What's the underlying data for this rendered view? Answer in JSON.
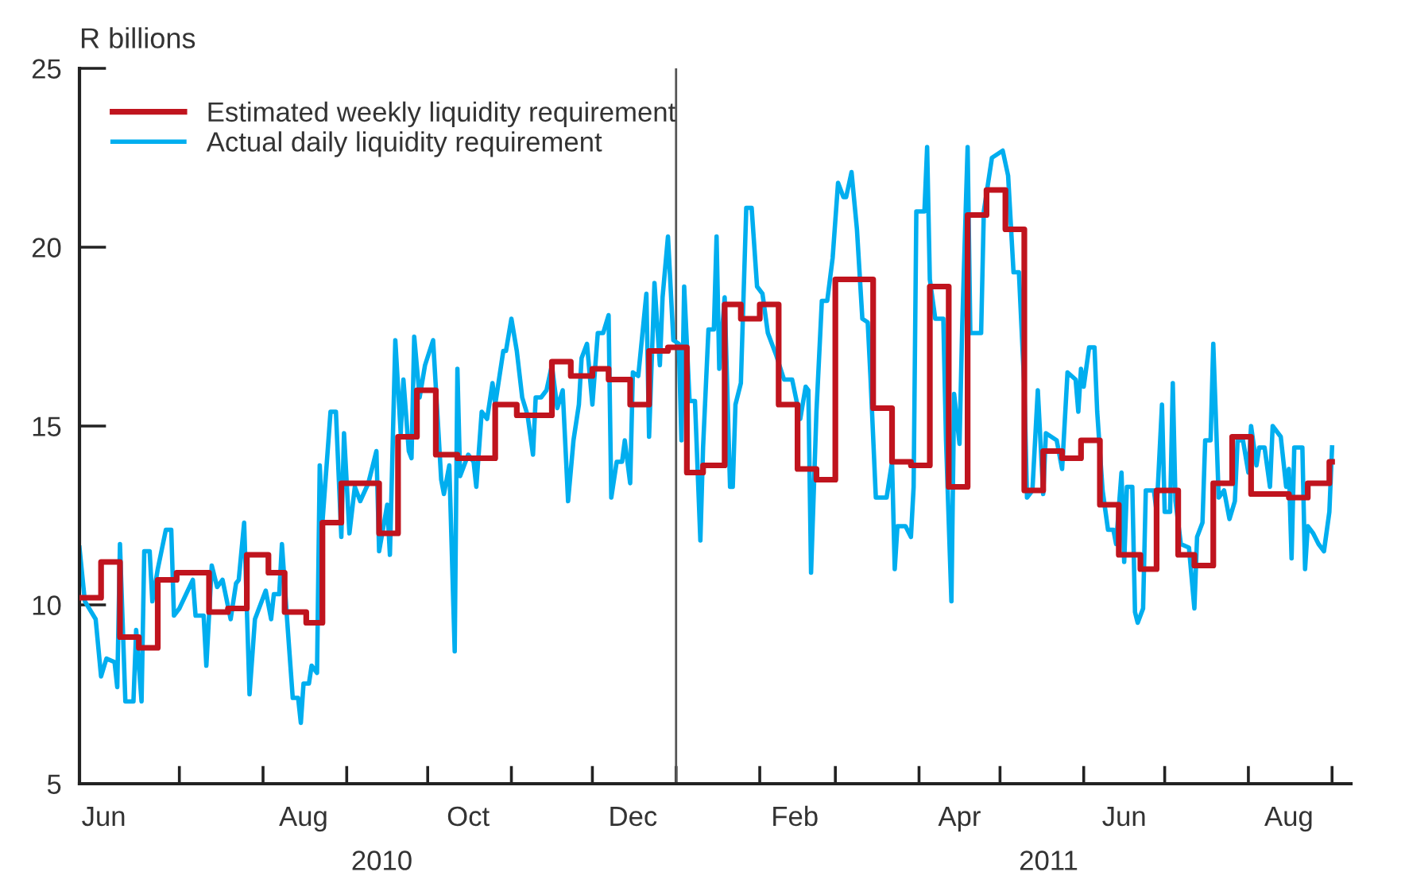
{
  "chart_data": {
    "type": "line",
    "ylabel": "R billions",
    "xlim": [
      "2010-05-25",
      "2011-09-08"
    ],
    "ylim": [
      5,
      25
    ],
    "yticks": [
      5,
      10,
      15,
      20,
      25
    ],
    "xticks": [
      {
        "value": "2010-07-01",
        "label": null
      },
      {
        "value": "2010-08-01",
        "label": null
      },
      {
        "value": "2010-09-01",
        "label": null
      },
      {
        "value": "2010-10-01",
        "label": null
      },
      {
        "value": "2010-11-01",
        "label": null
      },
      {
        "value": "2010-12-01",
        "label": null
      },
      {
        "value": "2011-01-01",
        "label": null
      },
      {
        "value": "2011-02-01",
        "label": null
      },
      {
        "value": "2011-03-01",
        "label": null
      },
      {
        "value": "2011-04-01",
        "label": null
      },
      {
        "value": "2011-05-01",
        "label": null
      },
      {
        "value": "2011-06-01",
        "label": null
      },
      {
        "value": "2011-07-01",
        "label": null
      },
      {
        "value": "2011-08-01",
        "label": null
      },
      {
        "value": "2011-09-01",
        "label": null
      },
      {
        "value": "2010-06-03",
        "label": "Jun"
      },
      {
        "value": "2010-08-16",
        "label": "Aug"
      },
      {
        "value": "2010-10-16",
        "label": "Oct"
      },
      {
        "value": "2010-12-16",
        "label": "Dec"
      },
      {
        "value": "2011-02-14",
        "label": "Feb"
      },
      {
        "value": "2011-04-16",
        "label": "Apr"
      },
      {
        "value": "2011-06-16",
        "label": "Jun"
      },
      {
        "value": "2011-08-16",
        "label": "Aug"
      }
    ],
    "x2lim": [
      "2010-05-25",
      "2011-09-08"
    ],
    "x2ticks": [
      {
        "value": "2010-09-14",
        "label": "2010"
      },
      {
        "value": "2011-05-19",
        "label": "2011"
      }
    ],
    "ref_lines": [
      {
        "axis": "x",
        "value": "2011-01-01",
        "label": null,
        "color": "#555555"
      }
    ],
    "legend": "top left",
    "grid": false,
    "marker": "none",
    "line_style": "solid",
    "series": [
      {
        "name": "Estimated weekly liquidity requirement",
        "type": "step",
        "color": "#c0141e",
        "x": [
          "2010-05-25",
          "2010-06-02",
          "2010-06-09",
          "2010-06-16",
          "2010-06-23",
          "2010-06-30",
          "2010-07-12",
          "2010-07-19",
          "2010-07-26",
          "2010-08-03",
          "2010-08-09",
          "2010-08-17",
          "2010-08-23",
          "2010-08-30",
          "2010-09-13",
          "2010-09-20",
          "2010-09-27",
          "2010-10-04",
          "2010-10-12",
          "2010-10-26",
          "2010-11-03",
          "2010-11-16",
          "2010-11-23",
          "2010-12-01",
          "2010-12-07",
          "2010-12-15",
          "2010-12-22",
          "2010-12-29",
          "2011-01-05",
          "2011-01-11",
          "2011-01-19",
          "2011-01-25",
          "2011-02-01",
          "2011-02-08",
          "2011-02-15",
          "2011-02-22",
          "2011-03-01",
          "2011-03-15",
          "2011-03-22",
          "2011-03-29",
          "2011-04-05",
          "2011-04-12",
          "2011-04-19",
          "2011-04-26",
          "2011-05-03",
          "2011-05-10",
          "2011-05-17",
          "2011-05-24",
          "2011-05-31",
          "2011-06-07",
          "2011-06-14",
          "2011-06-22",
          "2011-06-28",
          "2011-07-06",
          "2011-07-12",
          "2011-07-19",
          "2011-07-26",
          "2011-08-02",
          "2011-08-16",
          "2011-08-23",
          "2011-08-31",
          "2011-09-01"
        ],
        "values": [
          10.2,
          11.2,
          9.1,
          8.8,
          10.7,
          10.9,
          9.8,
          9.9,
          11.4,
          10.9,
          9.8,
          9.5,
          12.3,
          13.4,
          12.0,
          14.7,
          16.0,
          14.2,
          14.1,
          15.6,
          15.3,
          16.8,
          16.4,
          16.6,
          16.3,
          15.6,
          17.1,
          17.2,
          13.7,
          13.9,
          18.4,
          18.0,
          18.4,
          15.6,
          13.8,
          13.5,
          19.1,
          15.5,
          14.0,
          13.9,
          18.9,
          13.3,
          20.9,
          21.6,
          20.5,
          13.2,
          14.3,
          14.1,
          14.6,
          12.8,
          11.4,
          11.0,
          13.2,
          11.4,
          11.1,
          13.4,
          14.7,
          13.1,
          13.0,
          13.4,
          14.0,
          14.0
        ]
      },
      {
        "name": "Actual daily liquidity requirement",
        "color": "#00aeef",
        "x": [
          "2010-05-25",
          "2010-05-27",
          "2010-05-31",
          "2010-06-02",
          "2010-06-04",
          "2010-06-07",
          "2010-06-08",
          "2010-06-09",
          "2010-06-11",
          "2010-06-14",
          "2010-06-15",
          "2010-06-17",
          "2010-06-18",
          "2010-06-20",
          "2010-06-21",
          "2010-06-23",
          "2010-06-26",
          "2010-06-28",
          "2010-06-29",
          "2010-07-01",
          "2010-07-06",
          "2010-07-07",
          "2010-07-10",
          "2010-07-11",
          "2010-07-13",
          "2010-07-15",
          "2010-07-17",
          "2010-07-20",
          "2010-07-22",
          "2010-07-23",
          "2010-07-25",
          "2010-07-27",
          "2010-07-29",
          "2010-08-02",
          "2010-08-04",
          "2010-08-05",
          "2010-08-07",
          "2010-08-08",
          "2010-08-10",
          "2010-08-12",
          "2010-08-14",
          "2010-08-15",
          "2010-08-16",
          "2010-08-18",
          "2010-08-19",
          "2010-08-21",
          "2010-08-22",
          "2010-08-23",
          "2010-08-26",
          "2010-08-28",
          "2010-08-30",
          "2010-08-31",
          "2010-09-02",
          "2010-09-04",
          "2010-09-06",
          "2010-09-09",
          "2010-09-12",
          "2010-09-13",
          "2010-09-16",
          "2010-09-17",
          "2010-09-19",
          "2010-09-21",
          "2010-09-22",
          "2010-09-24",
          "2010-09-25",
          "2010-09-26",
          "2010-09-28",
          "2010-09-30",
          "2010-10-03",
          "2010-10-06",
          "2010-10-07",
          "2010-10-09",
          "2010-10-11",
          "2010-10-12",
          "2010-10-13",
          "2010-10-16",
          "2010-10-18",
          "2010-10-19",
          "2010-10-21",
          "2010-10-23",
          "2010-10-25",
          "2010-10-26",
          "2010-10-29",
          "2010-10-30",
          "2010-11-01",
          "2010-11-03",
          "2010-11-05",
          "2010-11-07",
          "2010-11-09",
          "2010-11-10",
          "2010-11-12",
          "2010-11-14",
          "2010-11-16",
          "2010-11-18",
          "2010-11-20",
          "2010-11-22",
          "2010-11-24",
          "2010-11-26",
          "2010-11-27",
          "2010-11-29",
          "2010-12-01",
          "2010-12-03",
          "2010-12-05",
          "2010-12-07",
          "2010-12-08",
          "2010-12-10",
          "2010-12-12",
          "2010-12-13",
          "2010-12-15",
          "2010-12-16",
          "2010-12-18",
          "2010-12-21",
          "2010-12-22",
          "2010-12-24",
          "2010-12-26",
          "2010-12-27",
          "2010-12-29",
          "2010-12-31",
          "2011-01-02",
          "2011-01-03",
          "2011-01-04",
          "2011-01-06",
          "2011-01-08",
          "2011-01-10",
          "2011-01-11",
          "2011-01-13",
          "2011-01-15",
          "2011-01-16",
          "2011-01-17",
          "2011-01-19",
          "2011-01-21",
          "2011-01-22",
          "2011-01-23",
          "2011-01-25",
          "2011-01-27",
          "2011-01-29",
          "2011-01-31",
          "2011-02-02",
          "2011-02-04",
          "2011-02-07",
          "2011-02-10",
          "2011-02-13",
          "2011-02-16",
          "2011-02-18",
          "2011-02-19",
          "2011-02-20",
          "2011-02-22",
          "2011-02-24",
          "2011-02-26",
          "2011-02-28",
          "2011-03-02",
          "2011-03-04",
          "2011-03-05",
          "2011-03-07",
          "2011-03-09",
          "2011-03-11",
          "2011-03-13",
          "2011-03-14",
          "2011-03-16",
          "2011-03-20",
          "2011-03-22",
          "2011-03-23",
          "2011-03-24",
          "2011-03-27",
          "2011-03-29",
          "2011-03-30",
          "2011-03-31",
          "2011-04-03",
          "2011-04-04",
          "2011-04-05",
          "2011-04-07",
          "2011-04-10",
          "2011-04-11",
          "2011-04-13",
          "2011-04-14",
          "2011-04-16",
          "2011-04-17",
          "2011-04-19",
          "2011-04-20",
          "2011-04-24",
          "2011-04-25",
          "2011-04-28",
          "2011-04-30",
          "2011-05-02",
          "2011-05-04",
          "2011-05-06",
          "2011-05-08",
          "2011-05-10",
          "2011-05-11",
          "2011-05-13",
          "2011-05-15",
          "2011-05-17",
          "2011-05-18",
          "2011-05-22",
          "2011-05-24",
          "2011-05-26",
          "2011-05-29",
          "2011-05-30",
          "2011-05-31",
          "2011-06-01",
          "2011-06-03",
          "2011-06-05",
          "2011-06-06",
          "2011-06-08",
          "2011-06-10",
          "2011-06-12",
          "2011-06-13",
          "2011-06-15",
          "2011-06-16",
          "2011-06-17",
          "2011-06-19",
          "2011-06-20",
          "2011-06-21",
          "2011-06-23",
          "2011-06-24",
          "2011-06-27",
          "2011-06-28",
          "2011-06-30",
          "2011-07-01",
          "2011-07-03",
          "2011-07-04",
          "2011-07-05",
          "2011-07-07",
          "2011-07-10",
          "2011-07-12",
          "2011-07-13",
          "2011-07-15",
          "2011-07-16",
          "2011-07-18",
          "2011-07-19",
          "2011-07-21",
          "2011-07-23",
          "2011-07-25",
          "2011-07-27",
          "2011-07-28",
          "2011-07-30",
          "2011-08-01",
          "2011-08-02",
          "2011-08-04",
          "2011-08-05",
          "2011-08-07",
          "2011-08-09",
          "2011-08-10",
          "2011-08-13",
          "2011-08-15",
          "2011-08-16",
          "2011-08-17",
          "2011-08-18",
          "2011-08-21",
          "2011-08-22",
          "2011-08-23",
          "2011-08-25",
          "2011-08-27",
          "2011-08-29",
          "2011-08-31",
          "2011-09-01"
        ],
        "values": [
          11.6,
          10.1,
          9.6,
          8.0,
          8.5,
          8.4,
          7.7,
          11.7,
          7.3,
          7.3,
          9.3,
          7.3,
          11.5,
          11.5,
          10.1,
          11.0,
          12.1,
          12.1,
          9.7,
          9.9,
          10.7,
          9.7,
          9.7,
          8.3,
          11.1,
          10.5,
          10.7,
          9.6,
          10.6,
          10.7,
          12.3,
          7.5,
          9.6,
          10.4,
          9.6,
          10.3,
          10.3,
          11.7,
          9.5,
          7.4,
          7.4,
          6.7,
          7.8,
          7.8,
          8.3,
          8.1,
          13.9,
          12.3,
          15.4,
          15.4,
          11.9,
          14.8,
          12.0,
          13.3,
          12.9,
          13.4,
          14.3,
          11.5,
          12.8,
          11.4,
          17.4,
          14.8,
          16.3,
          14.3,
          14.1,
          17.5,
          15.8,
          16.7,
          17.4,
          13.5,
          13.1,
          13.9,
          8.7,
          16.6,
          13.6,
          14.2,
          14.0,
          13.3,
          15.4,
          15.2,
          16.2,
          15.6,
          17.1,
          17.1,
          18.0,
          17.1,
          15.8,
          15.3,
          14.2,
          15.8,
          15.8,
          16.0,
          16.7,
          15.5,
          16.0,
          12.9,
          14.6,
          15.6,
          16.9,
          17.3,
          15.6,
          17.6,
          17.6,
          18.1,
          13.0,
          14.0,
          14.0,
          14.6,
          13.4,
          16.5,
          16.4,
          18.7,
          14.7,
          19.0,
          16.7,
          18.6,
          20.3,
          17.4,
          17.3,
          14.6,
          18.9,
          15.7,
          15.7,
          11.8,
          14.4,
          17.7,
          17.7,
          20.3,
          16.6,
          18.6,
          13.3,
          13.3,
          15.6,
          16.2,
          21.1,
          21.1,
          18.9,
          18.7,
          17.6,
          17.0,
          16.3,
          16.3,
          15.2,
          16.1,
          16.0,
          10.9,
          15.4,
          18.5,
          18.5,
          19.7,
          21.8,
          21.4,
          21.4,
          22.1,
          20.5,
          18.0,
          17.9,
          16.4,
          13.0,
          13.0,
          14.0,
          11.0,
          12.2,
          12.2,
          11.9,
          13.3,
          21.0,
          21.0,
          22.8,
          19.1,
          18.0,
          18.0,
          14.6,
          10.1,
          15.9,
          14.5,
          17.8,
          22.8,
          17.6,
          17.6,
          21.0,
          22.5,
          22.6,
          22.7,
          22.0,
          19.3,
          19.3,
          16.1,
          13.0,
          13.2,
          16.0,
          13.1,
          14.8,
          14.6,
          13.8,
          16.5,
          16.3,
          15.4,
          16.6,
          16.1,
          17.2,
          17.2,
          15.4,
          13.2,
          12.1,
          12.1,
          11.7,
          13.7,
          11.2,
          13.3,
          13.3,
          9.8,
          9.5,
          9.9,
          13.2,
          13.2,
          12.6,
          15.6,
          12.6,
          12.6,
          16.2,
          12.9,
          11.7,
          11.6,
          9.9,
          11.9,
          12.3,
          14.6,
          14.6,
          17.3,
          13.0,
          13.2,
          12.4,
          12.9,
          14.6,
          14.6,
          13.7,
          15.0,
          13.9,
          14.4,
          14.4,
          13.3,
          15.0,
          14.7,
          13.3,
          13.8,
          11.3,
          14.4,
          14.4,
          11.0,
          12.2,
          12.0,
          11.7,
          11.5,
          12.6,
          14.4
        ]
      }
    ]
  }
}
